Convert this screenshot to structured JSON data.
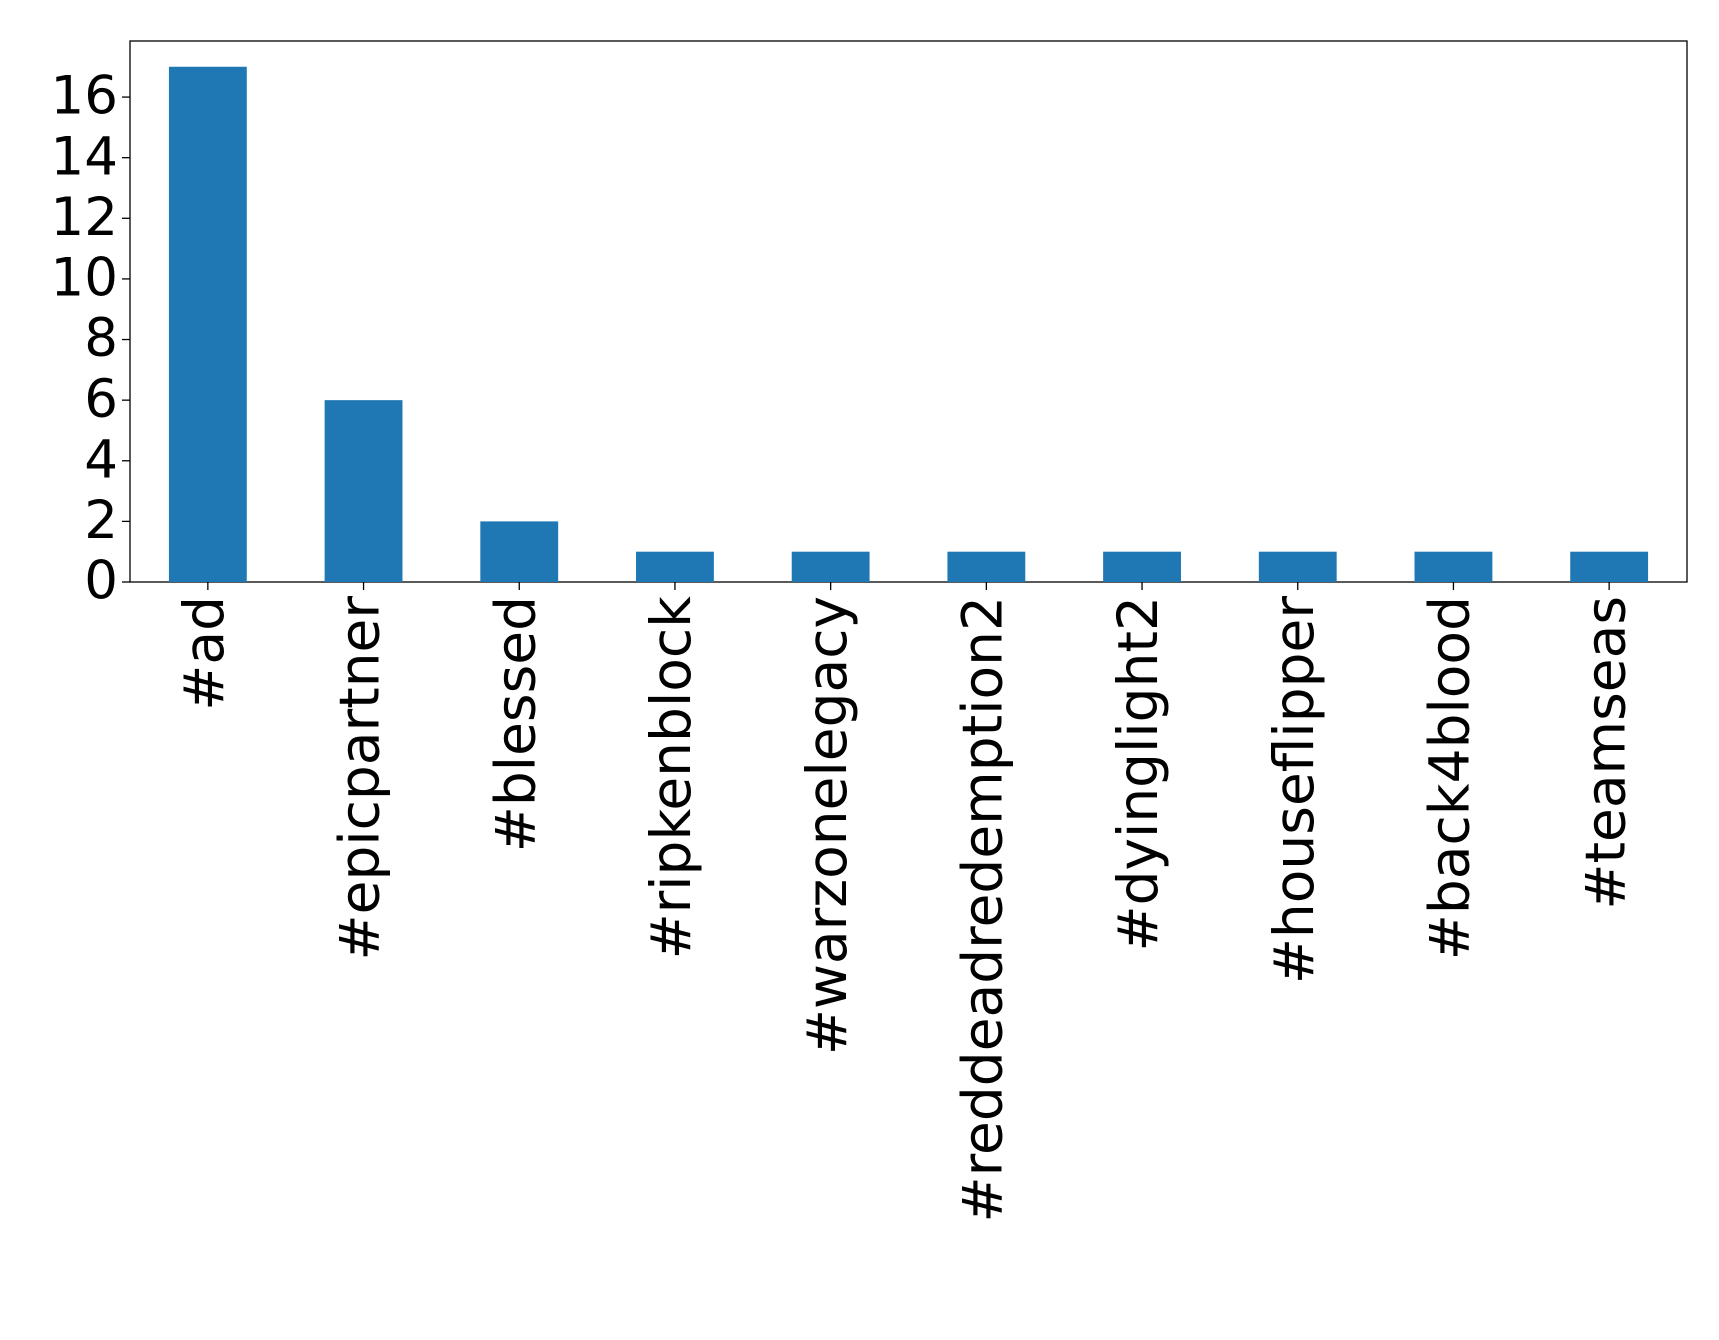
{
  "chart_data": {
    "type": "bar",
    "categories": [
      "#ad",
      "#epicpartner",
      "#blessed",
      "#ripkenblock",
      "#warzonelegacy",
      "#reddeadredemption2",
      "#dyinglight2",
      "#houseflipper",
      "#back4blood",
      "#teamseas"
    ],
    "values": [
      17,
      6,
      2,
      1,
      1,
      1,
      1,
      1,
      1,
      1
    ],
    "color": "#1f77b4",
    "ylim": [
      0,
      17.85
    ],
    "yticks": [
      0,
      2,
      4,
      6,
      8,
      10,
      12,
      14,
      16
    ],
    "grid": false
  }
}
